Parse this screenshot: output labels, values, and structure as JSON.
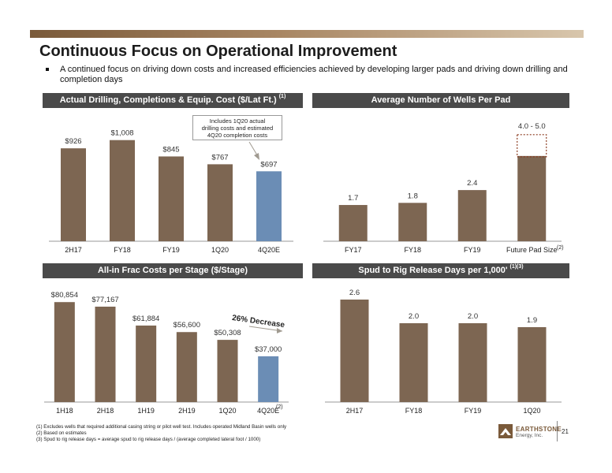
{
  "title": "Continuous Focus on Operational Improvement",
  "bullet": "A continued focus on driving down costs and increased efficiencies achieved by developing larger pads and driving down drilling and completion days",
  "colors": {
    "bar": "#7d6652",
    "bar_highlight": "#6b8db5",
    "header_bg": "#4a4a4a"
  },
  "panels": {
    "drilling": {
      "header": "Actual Drilling, Completions & Equip. Cost ($/Lat Ft.)",
      "sup": "(1)",
      "callout": [
        "Includes 1Q20 actual",
        "drilling costs and estimated",
        "4Q20 completion costs"
      ]
    },
    "wells": {
      "header": "Average Number of Wells Per Pad",
      "range_label": "4.0 - 5.0",
      "note": "(2)"
    },
    "frac": {
      "header": "All-in Frac Costs per Stage ($/Stage)",
      "decrease_label": "26% Decrease",
      "note": "(2)"
    },
    "spud": {
      "header": "Spud to Rig Release Days per 1,000'",
      "sup": "(1)(3)"
    }
  },
  "chart_data": [
    {
      "type": "bar",
      "title": "Actual Drilling, Completions & Equip. Cost ($/Lat Ft.)",
      "categories": [
        "2H17",
        "FY18",
        "FY19",
        "1Q20",
        "4Q20E"
      ],
      "values": [
        926,
        1008,
        845,
        767,
        697
      ],
      "labels": [
        "$926",
        "$1,008",
        "$845",
        "$767",
        "$697"
      ],
      "highlight": [
        false,
        false,
        false,
        false,
        true
      ]
    },
    {
      "type": "bar",
      "title": "Average Number of Wells Per Pad",
      "categories": [
        "FY17",
        "FY18",
        "FY19",
        "Future Pad Size"
      ],
      "values": [
        1.7,
        1.8,
        2.4,
        4.0
      ],
      "range_high": 5.0,
      "labels": [
        "1.7",
        "1.8",
        "2.4",
        "4.0 - 5.0"
      ]
    },
    {
      "type": "bar",
      "title": "All-in Frac Costs per Stage ($/Stage)",
      "categories": [
        "1H18",
        "2H18",
        "1H19",
        "2H19",
        "1Q20",
        "4Q20E"
      ],
      "values": [
        80854,
        77167,
        61884,
        56600,
        50308,
        37000
      ],
      "labels": [
        "$80,854",
        "$77,167",
        "$61,884",
        "$56,600",
        "$50,308",
        "$37,000"
      ],
      "highlight": [
        false,
        false,
        false,
        false,
        false,
        true
      ]
    },
    {
      "type": "bar",
      "title": "Spud to Rig Release Days per 1,000'",
      "categories": [
        "2H17",
        "FY18",
        "FY19",
        "1Q20"
      ],
      "values": [
        2.6,
        2.0,
        2.0,
        1.9
      ],
      "labels": [
        "2.6",
        "2.0",
        "2.0",
        "1.9"
      ]
    }
  ],
  "footnotes": [
    "(1)  Excludes wells that required additional casing string or pilot well test. Includes operated Midland Basin wells only",
    "(2)  Based on estimates",
    "(3)  Spud to rig release days = average spud to rig release days / (average completed lateral foot / 1000)"
  ],
  "logo": {
    "name": "EARTHSTONE",
    "sub": "Energy, Inc."
  },
  "page_number": "21"
}
